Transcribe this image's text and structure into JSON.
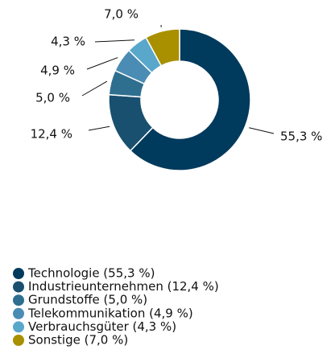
{
  "chart_data": {
    "type": "donut",
    "categories": [
      "Technologie (55,3 %)",
      "Industrieunternehmen (12,4 %)",
      "Grundstoffe (5,0 %)",
      "Telekommunikation (4,9 %)",
      "Verbrauchsgüter (4,3 %)",
      "Sonstige (7,0 %)"
    ],
    "values": [
      55.3,
      12.4,
      5.0,
      4.9,
      4.3,
      7.0
    ],
    "value_labels": [
      "55,3 %",
      "12,4 %",
      "5,0 %",
      "4,9 %",
      "4,3 %",
      "7,0 %"
    ],
    "colors": [
      "#003a5c",
      "#19506f",
      "#2e6f8f",
      "#4a8cb4",
      "#5aa7cc",
      "#a89000"
    ]
  }
}
